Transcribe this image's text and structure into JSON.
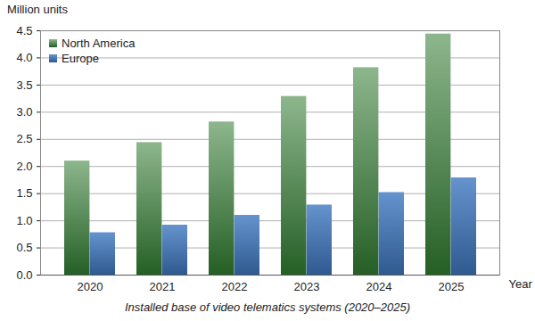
{
  "chart_data": {
    "type": "bar",
    "title": "Installed base of video telematics systems (2020–2025)",
    "xlabel": "Year",
    "ylabel": "Million units",
    "categories": [
      "2020",
      "2021",
      "2022",
      "2023",
      "2024",
      "2025"
    ],
    "series": [
      {
        "name": "North America",
        "color": "#2f7a2f",
        "values": [
          2.1,
          2.44,
          2.82,
          3.29,
          3.82,
          4.44
        ]
      },
      {
        "name": "Europe",
        "color": "#3f78c0",
        "values": [
          0.78,
          0.92,
          1.1,
          1.29,
          1.52,
          1.79
        ]
      }
    ],
    "ylim": [
      0,
      4.5
    ],
    "yticks": [
      {
        "value": 0,
        "label": "0.0"
      },
      0.5,
      {
        "value": 1,
        "label": "1.0"
      },
      1.5,
      {
        "value": 2,
        "label": "2.0"
      },
      2.5,
      {
        "value": 3,
        "label": "3.0"
      },
      3.5,
      {
        "value": 4,
        "label": "4.0"
      },
      4.5
    ],
    "grid": true,
    "legend": "upper left"
  }
}
